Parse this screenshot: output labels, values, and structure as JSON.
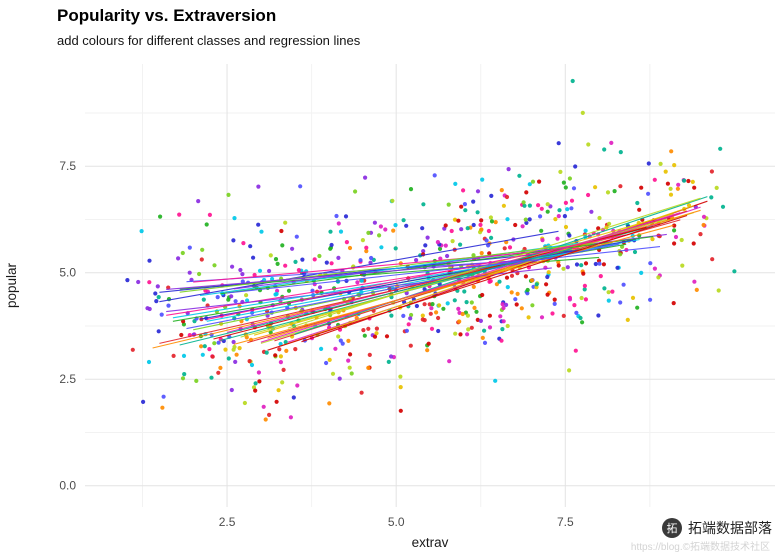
{
  "watermark": {
    "brand": "拓端数据部落",
    "url_line": "https://blog.©拓端数据技术社区",
    "logo_glyph": "拓"
  },
  "chart_data": {
    "type": "scatter",
    "title": "Popularity vs. Extraversion",
    "subtitle": "add colours for different classes and regression lines",
    "xlabel": "extrav",
    "ylabel": "popular",
    "xlim": [
      0.4,
      10.6
    ],
    "ylim": [
      -0.5,
      9.9
    ],
    "x_ticks": [
      2.5,
      5.0,
      7.5
    ],
    "x_tick_labels": [
      "2.5",
      "5.0",
      "7.5"
    ],
    "y_ticks": [
      0.0,
      2.5,
      5.0,
      7.5
    ],
    "y_tick_labels": [
      "0.0",
      "2.5",
      "5.0",
      "7.5"
    ],
    "x_minor_ticks": [
      1.25,
      3.75,
      6.25,
      8.75
    ],
    "y_minor_ticks": [
      1.25,
      3.75,
      6.25,
      8.75
    ],
    "grid": true,
    "legend": "none",
    "point_radius": 2.1,
    "noise_sd": 1.0,
    "seed": 42,
    "palette": [
      "#2929d6",
      "#e3242b",
      "#22b222",
      "#e020c0",
      "#00c8e8",
      "#ff8c00",
      "#8a2be2",
      "#b8d920",
      "#ff1493",
      "#00b38f",
      "#5050ff",
      "#d40000",
      "#7ad121",
      "#e8c100"
    ],
    "class_keys": [
      "palette_index",
      "intercept",
      "slope",
      "x_start",
      "x_end",
      "n_points"
    ],
    "classes": [
      [
        0,
        3.9,
        0.28,
        1.5,
        7.4,
        20
      ],
      [
        1,
        2.1,
        0.45,
        2.8,
        9.2,
        22
      ],
      [
        2,
        4.4,
        0.12,
        1.8,
        8.0,
        18
      ],
      [
        3,
        1.6,
        0.52,
        3.4,
        9.5,
        21
      ],
      [
        4,
        3.2,
        0.3,
        2.2,
        8.6,
        20
      ],
      [
        5,
        2.7,
        0.38,
        1.4,
        7.0,
        17
      ],
      [
        6,
        4.1,
        0.2,
        2.6,
        9.0,
        22
      ],
      [
        7,
        1.9,
        0.48,
        3.0,
        9.4,
        20
      ],
      [
        8,
        3.6,
        0.25,
        1.6,
        7.8,
        18
      ],
      [
        9,
        2.4,
        0.42,
        2.4,
        8.8,
        21
      ],
      [
        10,
        4.6,
        0.1,
        1.9,
        7.2,
        17
      ],
      [
        11,
        1.4,
        0.55,
        3.6,
        9.6,
        22
      ],
      [
        12,
        3.0,
        0.33,
        2.0,
        8.2,
        20
      ],
      [
        13,
        2.2,
        0.46,
        2.9,
        9.1,
        18
      ],
      [
        0,
        4.3,
        0.16,
        1.5,
        7.6,
        21
      ],
      [
        1,
        1.8,
        0.5,
        3.2,
        9.3,
        20
      ],
      [
        2,
        3.4,
        0.27,
        1.7,
        8.4,
        17
      ],
      [
        3,
        2.6,
        0.4,
        2.5,
        8.9,
        22
      ],
      [
        4,
        4.0,
        0.22,
        2.1,
        8.0,
        19
      ],
      [
        5,
        2.0,
        0.47,
        3.1,
        9.5,
        21
      ],
      [
        6,
        3.8,
        0.18,
        1.6,
        7.3,
        18
      ],
      [
        7,
        2.3,
        0.44,
        2.7,
        9.0,
        20
      ],
      [
        8,
        4.5,
        0.14,
        2.0,
        7.7,
        17
      ],
      [
        9,
        1.7,
        0.53,
        3.5,
        9.6,
        22
      ],
      [
        10,
        3.1,
        0.31,
        1.9,
        8.3,
        20
      ],
      [
        11,
        2.5,
        0.41,
        2.3,
        8.7,
        18
      ],
      [
        12,
        4.2,
        0.19,
        1.8,
        7.9,
        21
      ],
      [
        13,
        1.5,
        0.54,
        3.3,
        9.4,
        19
      ],
      [
        0,
        3.3,
        0.29,
        2.1,
        8.5,
        20
      ],
      [
        1,
        2.8,
        0.36,
        1.5,
        7.1,
        18
      ],
      [
        2,
        4.0,
        0.21,
        2.4,
        8.8,
        21
      ],
      [
        3,
        1.9,
        0.49,
        3.0,
        9.2,
        20
      ],
      [
        4,
        3.5,
        0.26,
        1.7,
        7.5,
        17
      ],
      [
        5,
        2.2,
        0.43,
        2.6,
        9.1,
        22
      ],
      [
        6,
        4.4,
        0.13,
        1.6,
        7.0,
        18
      ],
      [
        7,
        2.0,
        0.5,
        3.4,
        9.5,
        20
      ],
      [
        8,
        3.2,
        0.32,
        2.2,
        8.4,
        19
      ],
      [
        9,
        2.6,
        0.39,
        1.8,
        7.6,
        21
      ],
      [
        10,
        4.1,
        0.17,
        2.5,
        8.9,
        18
      ],
      [
        11,
        1.6,
        0.51,
        3.1,
        9.3,
        20
      ]
    ]
  }
}
